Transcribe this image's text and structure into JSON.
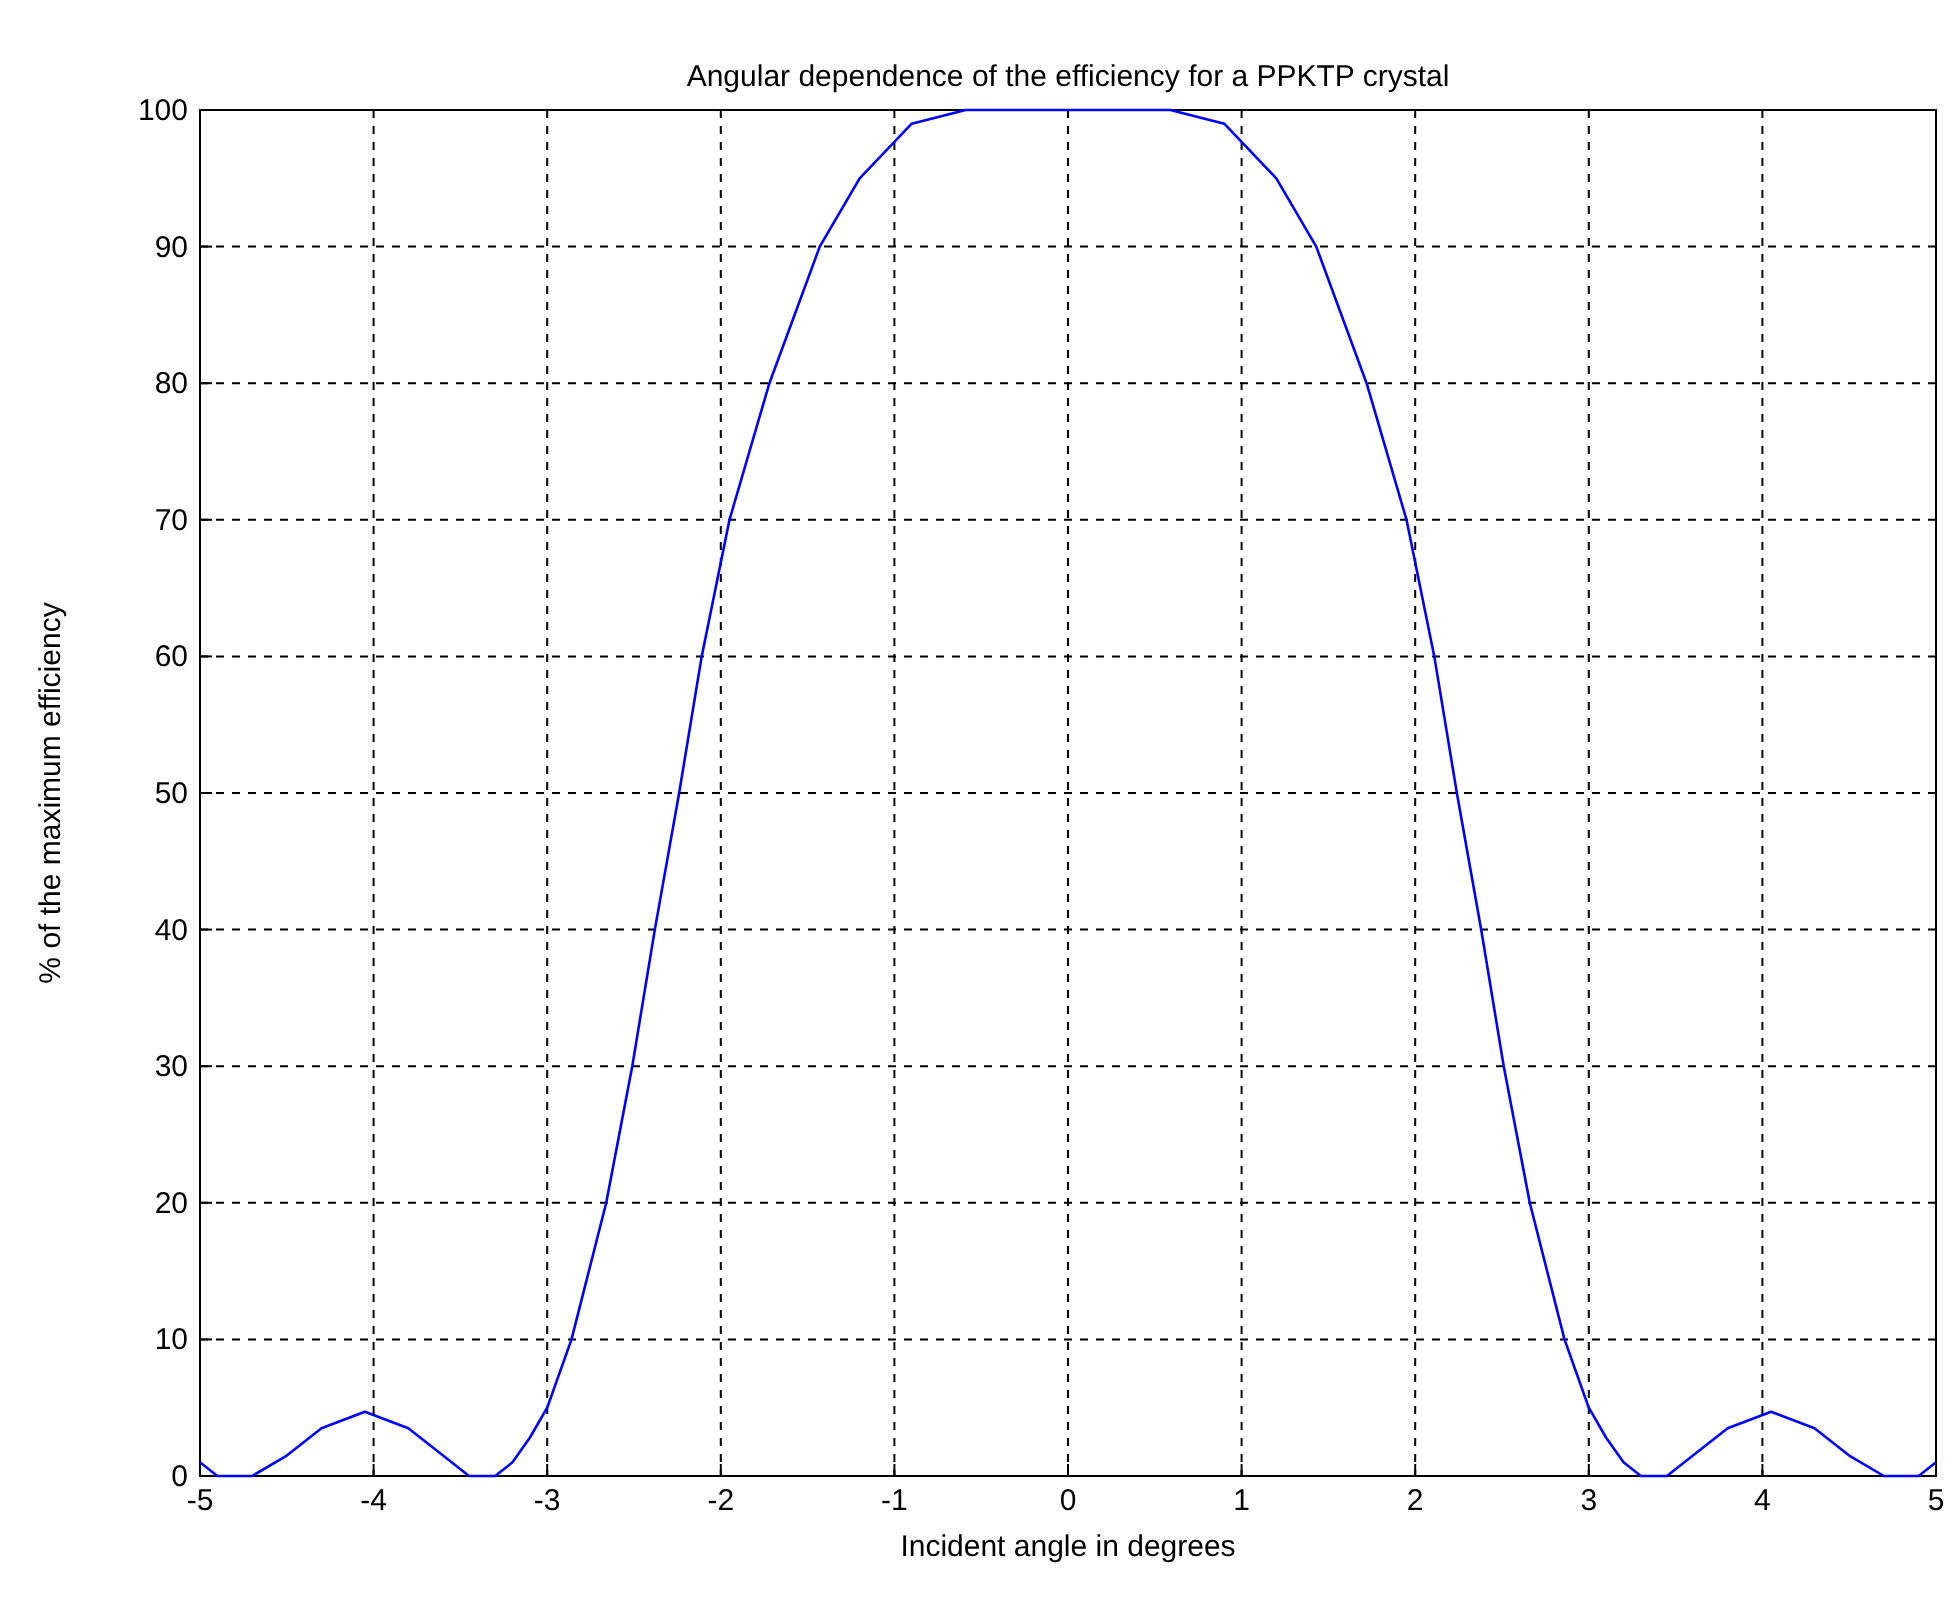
{
  "chart_data": {
    "type": "line",
    "title": "Angular dependence of the efficiency for a PPKTP crystal",
    "xlabel": "Incident angle in degrees",
    "ylabel": "% of the maximum efficiency",
    "xlim": [
      -5,
      5
    ],
    "ylim": [
      0,
      100
    ],
    "xticks": [
      -5,
      -4,
      -3,
      -2,
      -1,
      0,
      1,
      2,
      3,
      4,
      5
    ],
    "yticks": [
      0,
      10,
      20,
      30,
      40,
      50,
      60,
      70,
      80,
      90,
      100
    ],
    "grid": true,
    "marker": "none",
    "line_style": "solid",
    "series": [
      {
        "color": "#0000ff",
        "x": [
          -5,
          -4.9,
          -4.7,
          -4.5,
          -4.3,
          -4.05,
          -3.8,
          -3.6,
          -3.45,
          -3.3,
          -3.2,
          -3.1,
          -3,
          -2.86,
          -2.66,
          -2.51,
          -2.38,
          -2.24,
          -2.11,
          -1.95,
          -1.72,
          -1.43,
          -1.2,
          -0.9,
          -0.59,
          0,
          0.59,
          0.9,
          1.2,
          1.43,
          1.72,
          1.95,
          2.11,
          2.24,
          2.38,
          2.51,
          2.66,
          2.86,
          3,
          3.1,
          3.2,
          3.3,
          3.45,
          3.6,
          3.8,
          4.05,
          4.3,
          4.5,
          4.7,
          4.9,
          5
        ],
        "values": [
          1,
          0,
          0,
          1.5,
          3.5,
          4.7,
          3.5,
          1.5,
          0,
          0,
          1,
          2.8,
          5,
          10,
          20,
          30,
          40,
          50,
          60,
          70,
          80,
          90,
          95,
          99,
          100,
          100,
          100,
          99,
          95,
          90,
          80,
          70,
          60,
          50,
          40,
          30,
          20,
          10,
          5,
          2.8,
          1,
          0,
          0,
          1.5,
          3.5,
          4.7,
          3.5,
          1.5,
          0,
          0,
          1
        ]
      }
    ]
  }
}
